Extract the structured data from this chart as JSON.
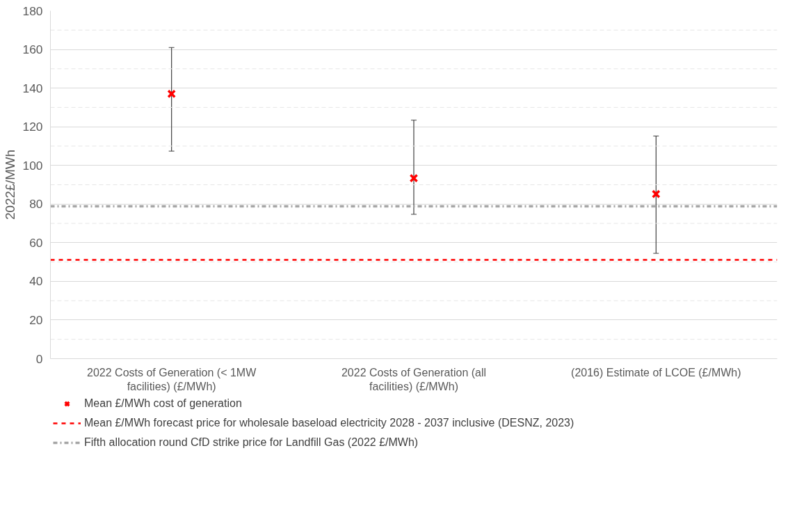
{
  "chart_data": {
    "type": "scatter",
    "ylabel": "2022£/MWh",
    "categories": [
      "2022 Costs of Generation (< 1MW facilities) (£/MWh)",
      "2022 Costs of Generation (all facilities) (£/MWh)",
      "(2016) Estimate of LCOE (£/MWh)"
    ],
    "series": [
      {
        "name": "Mean £/MWh cost of generation",
        "color": "#ff0000",
        "values": [
          137,
          93.4,
          85.2
        ],
        "errors": [
          [
            107.4,
            161
          ],
          [
            74.7,
            123.4
          ],
          [
            54.5,
            115.2
          ]
        ]
      }
    ],
    "marker": "cross",
    "ylim": [
      0,
      180
    ],
    "yticks": [
      0,
      {
        "value": 10,
        "label": null
      },
      20,
      {
        "value": 30,
        "label": null
      },
      40,
      {
        "value": 50,
        "label": null
      },
      60,
      {
        "value": 70,
        "label": null
      },
      80,
      {
        "value": 90,
        "label": null
      },
      100,
      {
        "value": 110,
        "label": null
      },
      120,
      {
        "value": 130,
        "label": null
      },
      140,
      {
        "value": 150,
        "label": null
      },
      160,
      {
        "value": 170,
        "label": null
      },
      180
    ],
    "grid": "y",
    "ref_lines": [
      {
        "axis": "y",
        "value": 51.1,
        "label": "Mean £/MWh forecast price for wholesale baseload electricity 2028 - 2037 inclusive (DESNZ, 2023)",
        "color": "#ff0000",
        "line_style": "dashed"
      },
      {
        "axis": "y",
        "value": 78.8,
        "label": "Fifth allocation round CfD strike price for Landfill Gas (2022 £/MWh)",
        "color": "#a6a6a6",
        "line_style": "dashdot"
      }
    ],
    "legend": "bottom"
  }
}
